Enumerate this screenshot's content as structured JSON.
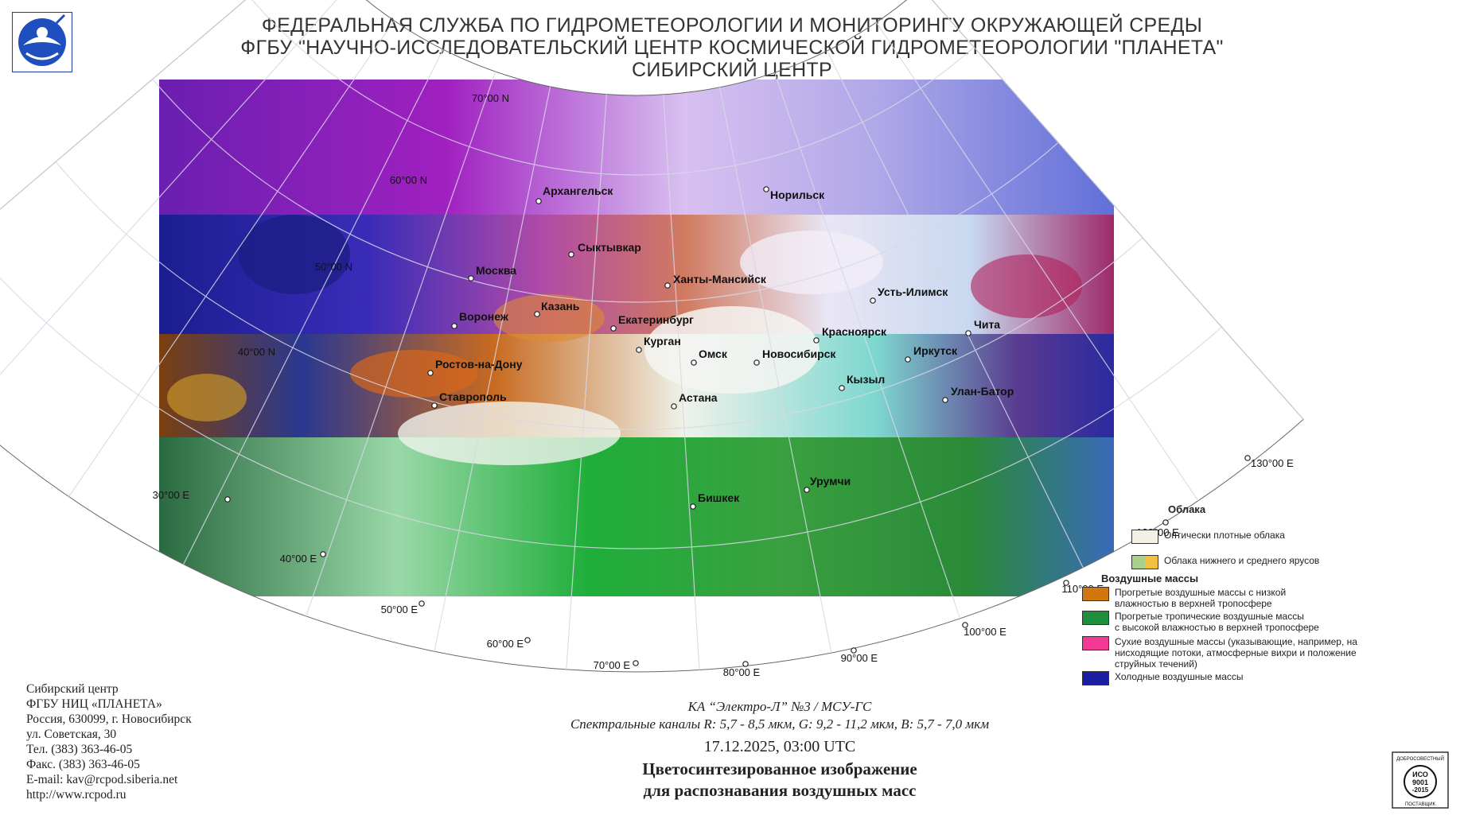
{
  "header": {
    "line1": "ФЕДЕРАЛЬНАЯ СЛУЖБА ПО ГИДРОМЕТЕОРОЛОГИИ И МОНИТОРИНГУ ОКРУЖАЮЩЕЙ СРЕДЫ",
    "line2": "ФГБУ \"НАУЧНО-ИССЛЕДОВАТЕЛЬСКИЙ ЦЕНТР КОСМИЧЕСКОЙ ГИДРОМЕТЕОРОЛОГИИ \"ПЛАНЕТА\"",
    "line3": "СИБИРСКИЙ ЦЕНТР"
  },
  "map": {
    "parallels": [
      "70°00 N",
      "60°00 N",
      "50°00 N",
      "40°00 N"
    ],
    "meridians": [
      "30°00 E",
      "40°00 E",
      "50°00 E",
      "60°00 E",
      "70°00 E",
      "80°00 E",
      "90°00 E",
      "100°00 E",
      "110°00 E",
      "120°00 E",
      "130°00 E"
    ],
    "cities": [
      "Архангельск",
      "Норильск",
      "Сыктывкар",
      "Москва",
      "Ханты-Мансийск",
      "Усть-Илимск",
      "Казань",
      "Воронеж",
      "Екатеринбург",
      "Красноярск",
      "Чита",
      "Курган",
      "Омск",
      "Новосибирск",
      "Иркутск",
      "Ростов-на-Дону",
      "Кызыл",
      "Улан-Батор",
      "Ставрополь",
      "Астана",
      "Урумчи",
      "Бишкек"
    ]
  },
  "legend": {
    "clouds_title": "Облака",
    "clouds": [
      {
        "label": "Оптически плотные облака",
        "color": "#f3f1e6"
      },
      {
        "label": "Облака нижнего и среднего ярусов",
        "color_a": "#a8d08a",
        "color_b": "#f0c040"
      }
    ],
    "air_title": "Воздушные массы",
    "air": [
      {
        "line1": "Прогретые воздушные массы с низкой",
        "line2": "влажностью в верхней тропосфере",
        "line3": "",
        "color": "#d4760e"
      },
      {
        "line1": "Прогретые тропичеcкие воздушные массы",
        "line2": "с высокой влажностью в верхней тропосфере",
        "line3": "",
        "color": "#1f8f3c"
      },
      {
        "line1": "Сухие воздушные массы (указывающие, например, на",
        "line2": "нисходящие потоки, атмосферные вихри и положение",
        "line3": "струйных течений)",
        "color": "#f23a94"
      },
      {
        "line1": "Холодные воздушные массы",
        "line2": "",
        "line3": "",
        "color": "#1a1ea0"
      }
    ]
  },
  "contacts": {
    "line1": "Сибирский центр",
    "line2": "ФГБУ НИЦ «ПЛАНЕТА»",
    "line3": "Россия, 630099, г. Новосибирск",
    "line4": "ул. Советская, 30",
    "line5": "Тел. (383) 363-46-05",
    "line6": "Факс. (383) 363-46-05",
    "line7": "E-mail: kav@rcpod.siberia.net",
    "line8": "http://www.rcpod.ru"
  },
  "caption": {
    "satellite": "КА “Электро-Л” №3 / МСУ-ГС",
    "channels": "Спектральные каналы R: 5,7 - 8,5 мкм, G: 9,2 - 11,2 мкм, B: 5,7 - 7,0 мкм",
    "datetime": "17.12.2025, 03:00 UTC",
    "title_line1": "Цветосинтезированное изображение",
    "title_line2": "для распознавания воздушных масс"
  },
  "iso_badge": {
    "line1": "ДОБРОСОВЕСТНЫЙ",
    "line2": "ИСО",
    "line3": "9001",
    "line4": "-2015",
    "line5": "ПОСТАВЩИК"
  }
}
